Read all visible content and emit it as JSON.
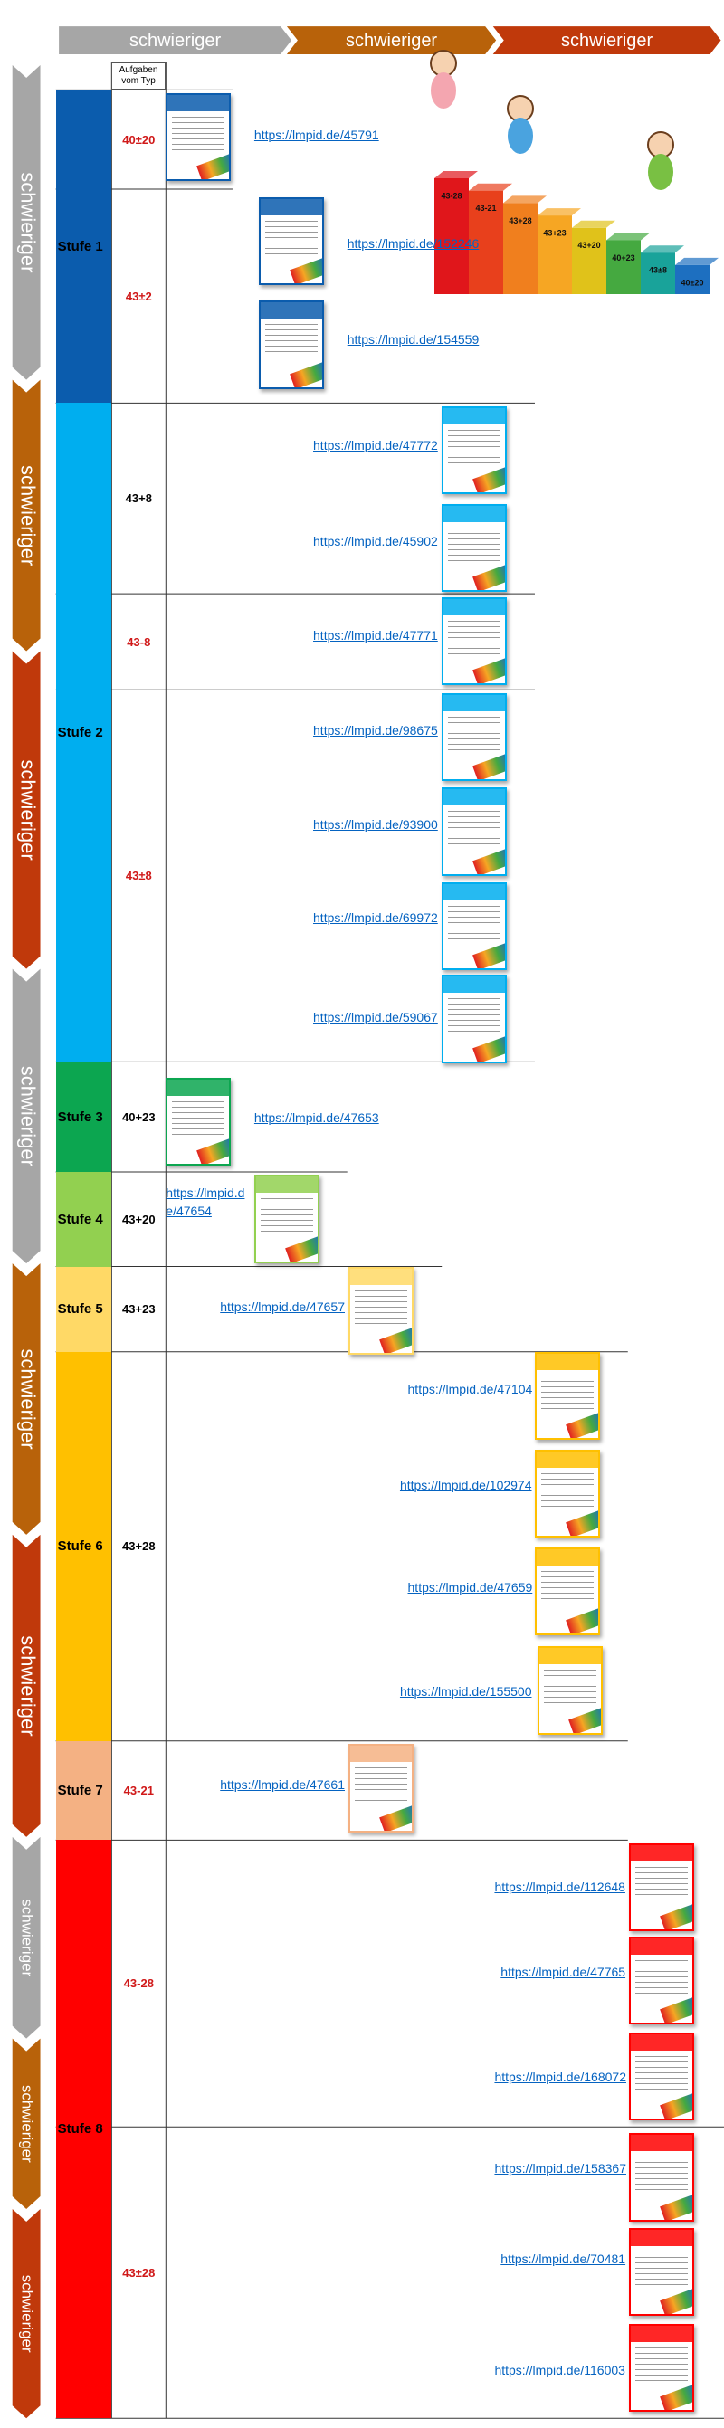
{
  "header_arrows": [
    "schwieriger",
    "schwieriger",
    "schwieriger"
  ],
  "side_arrows": [
    "schwieriger",
    "schwieriger",
    "schwieriger",
    "schwieriger",
    "schwieriger",
    "schwieriger",
    "schwieriger",
    "schwieriger",
    "schwieriger"
  ],
  "illustration": {
    "step_labels": [
      "43-28",
      "43-21",
      "43+28",
      "43+23",
      "43+20",
      "40+23",
      "43±8",
      "40±20"
    ]
  },
  "table": {
    "type_header": "Aufgaben vom Typ",
    "levels": [
      {
        "label": "Stufe 1",
        "rows": [
          {
            "type": "40±20",
            "links": [
              "https://lmpid.de/45791"
            ]
          },
          {
            "type": "43±2",
            "links": [
              "https://lmpid.de/152246",
              "https://lmpid.de/154559"
            ]
          }
        ]
      },
      {
        "label": "Stufe 2",
        "rows": [
          {
            "type": "43+8",
            "links": [
              "https://lmpid.de/47772",
              "https://lmpid.de/45902"
            ]
          },
          {
            "type": "43-8",
            "links": [
              "https://lmpid.de/47771"
            ]
          },
          {
            "type": "43±8",
            "links": [
              "https://lmpid.de/98675",
              "https://lmpid.de/93900",
              "https://lmpid.de/69972",
              "https://lmpid.de/59067"
            ]
          }
        ]
      },
      {
        "label": "Stufe 3",
        "rows": [
          {
            "type": "40+23",
            "links": [
              "https://lmpid.de/47653"
            ]
          }
        ]
      },
      {
        "label": "Stufe 4",
        "rows": [
          {
            "type": "43+20",
            "links": [
              "https://lmpid.de/47654"
            ]
          }
        ]
      },
      {
        "label": "Stufe 5",
        "rows": [
          {
            "type": "43+23",
            "links": [
              "https://lmpid.de/47657"
            ]
          }
        ]
      },
      {
        "label": "Stufe 6",
        "rows": [
          {
            "type": "43+28",
            "links": [
              "https://lmpid.de/47104",
              "https://lmpid.de/102974",
              "https://lmpid.de/47659",
              "https://lmpid.de/155500"
            ]
          }
        ]
      },
      {
        "label": "Stufe 7",
        "rows": [
          {
            "type": "43-21",
            "links": [
              "https://lmpid.de/47661"
            ]
          }
        ]
      },
      {
        "label": "Stufe 8",
        "rows": [
          {
            "type": "43-28",
            "links": [
              "https://lmpid.de/112648",
              "https://lmpid.de/47765",
              "https://lmpid.de/168072"
            ]
          },
          {
            "type": "43±28",
            "links": [
              "https://lmpid.de/158367",
              "https://lmpid.de/70481",
              "https://lmpid.de/116003"
            ]
          }
        ]
      }
    ]
  }
}
